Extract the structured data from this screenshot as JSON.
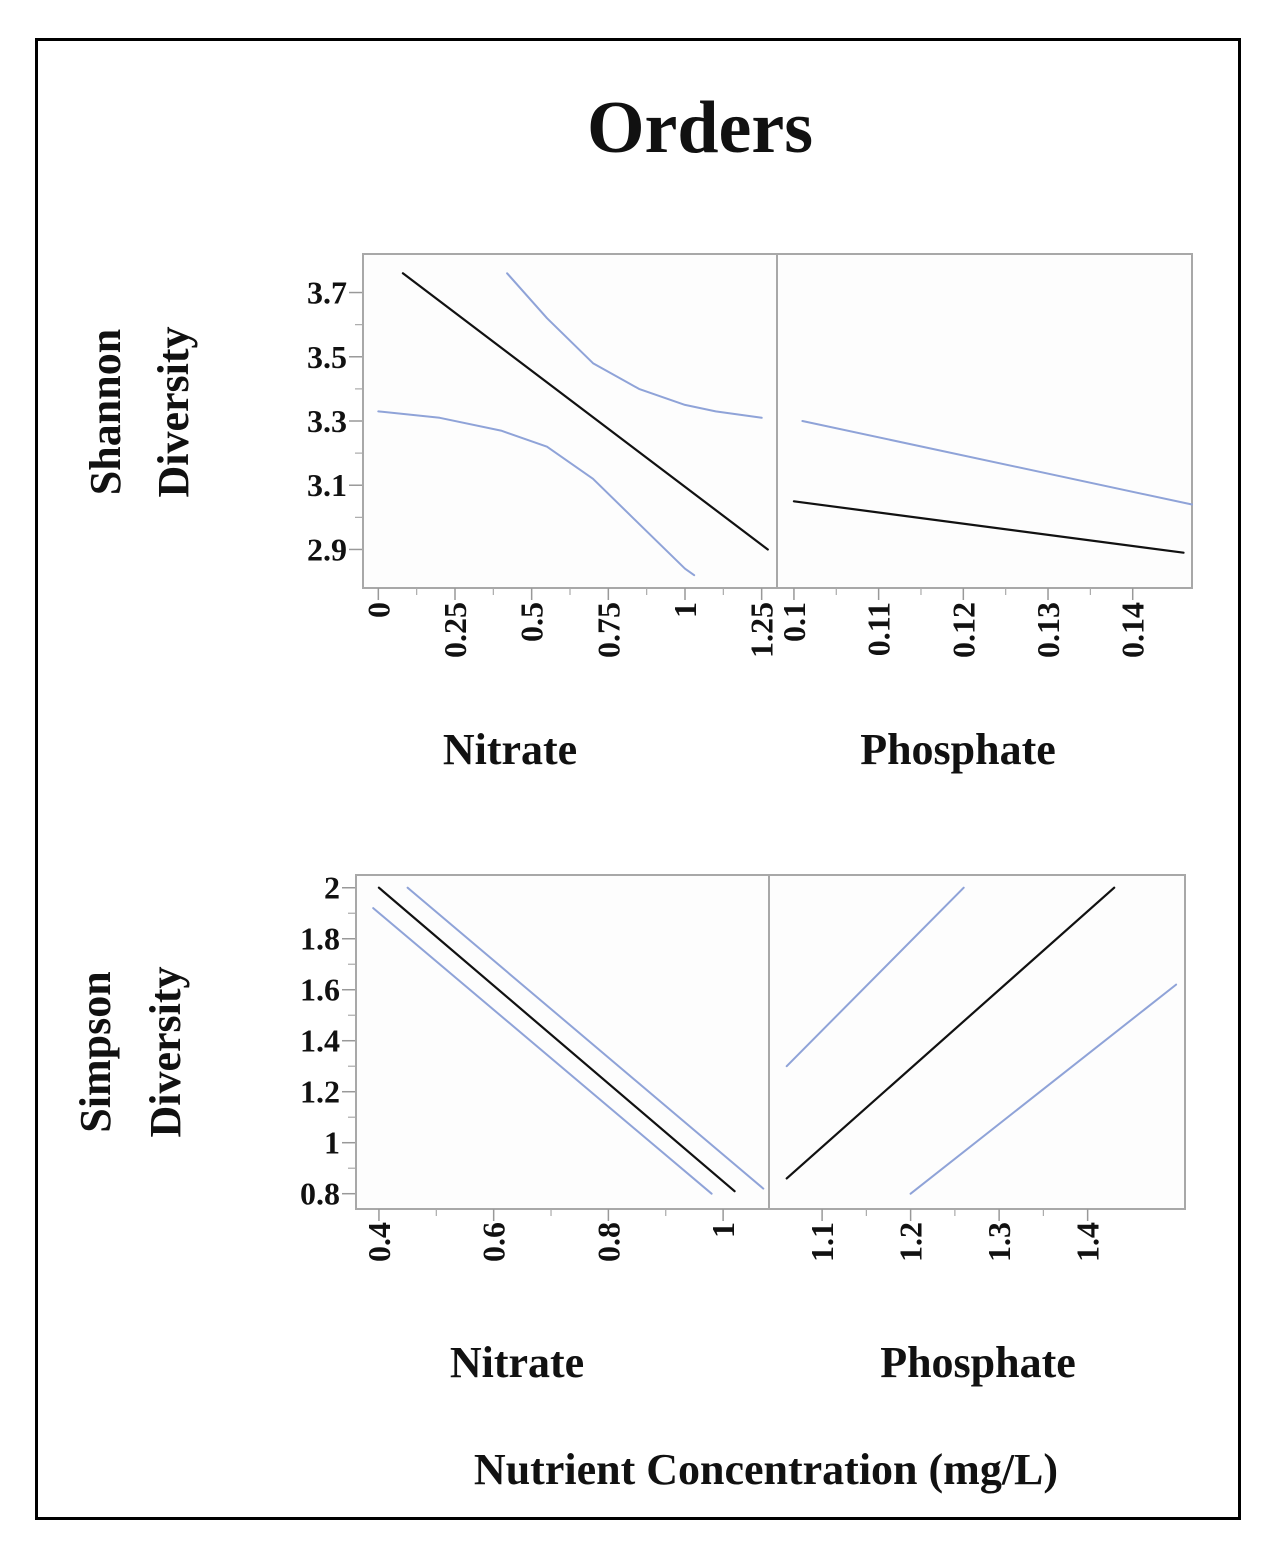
{
  "chart_data": [
    {
      "type": "line",
      "title": "Orders",
      "ylabel": [
        "Shannon",
        "Diversity"
      ],
      "ylim": [
        2.78,
        3.82
      ],
      "yticks": [
        "3.7",
        "3.5",
        "3.3",
        "3.1",
        "2.9"
      ],
      "panels": [
        {
          "xlabel": "Nitrate",
          "xlim": [
            -0.05,
            1.3
          ],
          "xticks": [
            "0",
            "0.25",
            "0.5",
            "0.75",
            "1",
            "1.25"
          ],
          "series": [
            {
              "name": "fit",
              "color": "#111111",
              "x": [
                0.08,
                1.27
              ],
              "y": [
                3.76,
                2.9
              ]
            },
            {
              "name": "upper-ci",
              "color": "#8fa3d8",
              "x": [
                0.42,
                0.55,
                0.7,
                0.85,
                1.0,
                1.1,
                1.25
              ],
              "y": [
                3.76,
                3.62,
                3.48,
                3.4,
                3.35,
                3.33,
                3.31
              ]
            },
            {
              "name": "lower-ci",
              "color": "#8fa3d8",
              "x": [
                0.0,
                0.2,
                0.4,
                0.55,
                0.7,
                0.85,
                1.0,
                1.03
              ],
              "y": [
                3.33,
                3.31,
                3.27,
                3.22,
                3.12,
                2.98,
                2.84,
                2.82
              ]
            }
          ]
        },
        {
          "xlabel": "Phosphate",
          "xlim": [
            0.098,
            0.147
          ],
          "xticks": [
            "0.1",
            "0.11",
            "0.12",
            "0.13",
            "0.14"
          ],
          "series": [
            {
              "name": "fit",
              "color": "#111111",
              "x": [
                0.1,
                0.146
              ],
              "y": [
                3.05,
                2.89
              ]
            },
            {
              "name": "upper-ci",
              "color": "#8fa3d8",
              "x": [
                0.101,
                0.147
              ],
              "y": [
                3.3,
                3.04
              ]
            }
          ]
        }
      ]
    },
    {
      "type": "line",
      "ylabel": [
        "Simpson",
        "Diversity"
      ],
      "ylim": [
        0.74,
        2.05
      ],
      "yticks": [
        "2",
        "1.8",
        "1.6",
        "1.4",
        "1.2",
        "1",
        "0.8"
      ],
      "panels": [
        {
          "xlabel": "Nitrate",
          "xlim": [
            0.36,
            1.08
          ],
          "xticks": [
            "0.4",
            "0.6",
            "0.8",
            "1"
          ],
          "series": [
            {
              "name": "fit",
              "color": "#111111",
              "x": [
                0.4,
                1.02
              ],
              "y": [
                2.0,
                0.81
              ]
            },
            {
              "name": "upper-ci",
              "color": "#8fa3d8",
              "x": [
                0.45,
                1.07
              ],
              "y": [
                2.0,
                0.82
              ]
            },
            {
              "name": "lower-ci",
              "color": "#8fa3d8",
              "x": [
                0.39,
                0.98
              ],
              "y": [
                1.92,
                0.8
              ]
            }
          ]
        },
        {
          "xlabel": "Phosphate",
          "xlim": [
            1.04,
            1.51
          ],
          "xticks": [
            "1.1",
            "1.2",
            "1.3",
            "1.4"
          ],
          "series": [
            {
              "name": "fit",
              "color": "#111111",
              "x": [
                1.06,
                1.43
              ],
              "y": [
                0.86,
                2.0
              ]
            },
            {
              "name": "upper-ci",
              "color": "#8fa3d8",
              "x": [
                1.06,
                1.26
              ],
              "y": [
                1.3,
                2.0
              ]
            },
            {
              "name": "lower-ci",
              "color": "#8fa3d8",
              "x": [
                1.2,
                1.5
              ],
              "y": [
                0.8,
                1.62
              ]
            }
          ]
        }
      ]
    }
  ],
  "footer": "Nutrient Concentration (mg/L)"
}
